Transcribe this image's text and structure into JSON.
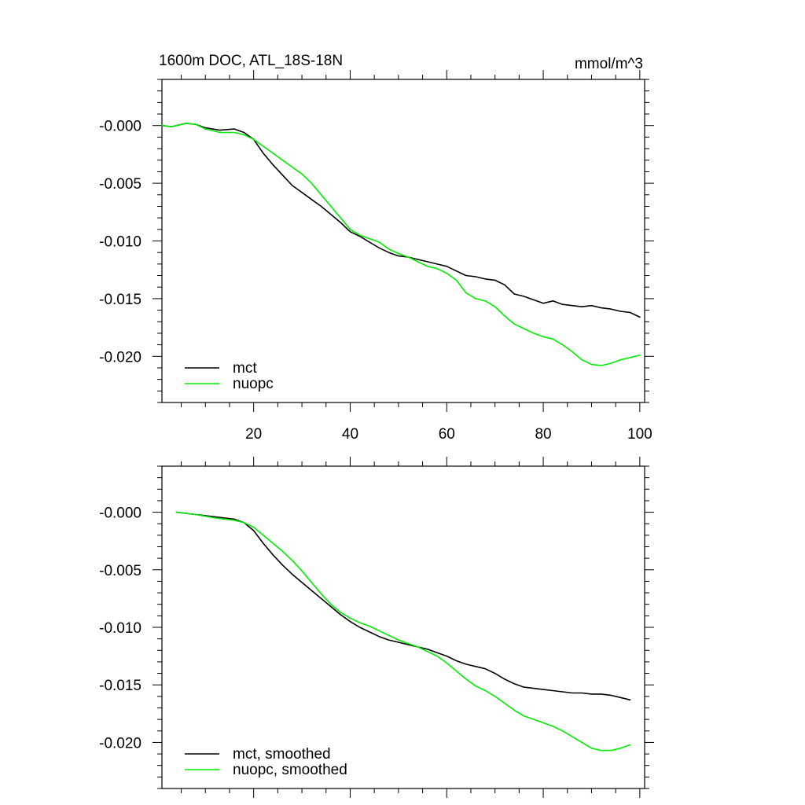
{
  "chart_data": [
    {
      "type": "line",
      "title": "1600m DOC, ATL_18S-18N",
      "units": "mmol/m^3",
      "xlim": [
        1,
        101
      ],
      "ylim": [
        -0.024,
        0.004
      ],
      "x_ticks": [
        20,
        40,
        60,
        80,
        100
      ],
      "x_tick_labels": [
        "20",
        "40",
        "60",
        "80",
        "100"
      ],
      "y_ticks": [
        0,
        -0.005,
        -0.01,
        -0.015,
        -0.02
      ],
      "y_tick_labels": [
        "-0.000",
        "-0.005",
        "-0.010",
        "-0.015",
        "-0.020"
      ],
      "legend_position": "bottom-left",
      "series": [
        {
          "name": "mct",
          "color": "#000000",
          "points": [
            [
              1,
              0
            ],
            [
              3,
              -0.0001
            ],
            [
              6,
              0.0002
            ],
            [
              8,
              0.0001
            ],
            [
              10,
              -0.0002
            ],
            [
              13,
              -0.0004
            ],
            [
              16,
              -0.0003
            ],
            [
              18,
              -0.0006
            ],
            [
              20,
              -0.0012
            ],
            [
              22,
              -0.0024
            ],
            [
              24,
              -0.0034
            ],
            [
              26,
              -0.0043
            ],
            [
              28,
              -0.0052
            ],
            [
              30,
              -0.0058
            ],
            [
              32,
              -0.0064
            ],
            [
              34,
              -0.007
            ],
            [
              36,
              -0.0077
            ],
            [
              38,
              -0.0084
            ],
            [
              40,
              -0.0092
            ],
            [
              42,
              -0.0096
            ],
            [
              44,
              -0.0101
            ],
            [
              46,
              -0.0106
            ],
            [
              48,
              -0.011
            ],
            [
              50,
              -0.0113
            ],
            [
              52,
              -0.0114
            ],
            [
              54,
              -0.0116
            ],
            [
              56,
              -0.0118
            ],
            [
              58,
              -0.012
            ],
            [
              60,
              -0.0122
            ],
            [
              62,
              -0.0126
            ],
            [
              64,
              -0.013
            ],
            [
              66,
              -0.0131
            ],
            [
              68,
              -0.0133
            ],
            [
              70,
              -0.0134
            ],
            [
              72,
              -0.0138
            ],
            [
              74,
              -0.0146
            ],
            [
              76,
              -0.0148
            ],
            [
              78,
              -0.0151
            ],
            [
              80,
              -0.0154
            ],
            [
              82,
              -0.0152
            ],
            [
              84,
              -0.0155
            ],
            [
              86,
              -0.0156
            ],
            [
              88,
              -0.0157
            ],
            [
              90,
              -0.0156
            ],
            [
              92,
              -0.0158
            ],
            [
              94,
              -0.0159
            ],
            [
              96,
              -0.0161
            ],
            [
              98,
              -0.0162
            ],
            [
              100,
              -0.0166
            ]
          ]
        },
        {
          "name": "nuopc",
          "color": "#00ee00",
          "points": [
            [
              1,
              0
            ],
            [
              3,
              -0.0001
            ],
            [
              6,
              0.0002
            ],
            [
              8,
              0.0001
            ],
            [
              10,
              -0.0003
            ],
            [
              13,
              -0.0006
            ],
            [
              16,
              -0.0006
            ],
            [
              18,
              -0.0008
            ],
            [
              20,
              -0.0012
            ],
            [
              22,
              -0.0018
            ],
            [
              24,
              -0.0024
            ],
            [
              26,
              -0.003
            ],
            [
              28,
              -0.0036
            ],
            [
              30,
              -0.0042
            ],
            [
              32,
              -0.005
            ],
            [
              34,
              -0.006
            ],
            [
              36,
              -0.007
            ],
            [
              38,
              -0.008
            ],
            [
              40,
              -0.009
            ],
            [
              42,
              -0.0095
            ],
            [
              44,
              -0.0098
            ],
            [
              46,
              -0.0101
            ],
            [
              48,
              -0.0107
            ],
            [
              50,
              -0.0111
            ],
            [
              52,
              -0.0114
            ],
            [
              54,
              -0.0118
            ],
            [
              56,
              -0.0122
            ],
            [
              58,
              -0.0124
            ],
            [
              60,
              -0.0128
            ],
            [
              62,
              -0.0134
            ],
            [
              64,
              -0.0145
            ],
            [
              66,
              -0.015
            ],
            [
              68,
              -0.0152
            ],
            [
              70,
              -0.0157
            ],
            [
              72,
              -0.0165
            ],
            [
              74,
              -0.0172
            ],
            [
              76,
              -0.0176
            ],
            [
              78,
              -0.018
            ],
            [
              80,
              -0.0183
            ],
            [
              82,
              -0.0185
            ],
            [
              84,
              -0.019
            ],
            [
              86,
              -0.0196
            ],
            [
              88,
              -0.0203
            ],
            [
              90,
              -0.0207
            ],
            [
              92,
              -0.0208
            ],
            [
              94,
              -0.0206
            ],
            [
              96,
              -0.0203
            ],
            [
              98,
              -0.0201
            ],
            [
              100,
              -0.0199
            ]
          ]
        }
      ]
    },
    {
      "type": "line",
      "title": "",
      "units": "",
      "xlim": [
        1,
        101
      ],
      "ylim": [
        -0.024,
        0.004
      ],
      "x_ticks": [
        20,
        40,
        60,
        80,
        100
      ],
      "x_tick_labels": [],
      "y_ticks": [
        0,
        -0.005,
        -0.01,
        -0.015,
        -0.02
      ],
      "y_tick_labels": [
        "-0.000",
        "-0.005",
        "-0.010",
        "-0.015",
        "-0.020"
      ],
      "legend_position": "bottom-left",
      "series": [
        {
          "name": "mct, smoothed",
          "color": "#000000",
          "points": [
            [
              4,
              0
            ],
            [
              8,
              -0.0002
            ],
            [
              12,
              -0.0004
            ],
            [
              16,
              -0.0006
            ],
            [
              18,
              -0.0009
            ],
            [
              20,
              -0.0016
            ],
            [
              22,
              -0.0027
            ],
            [
              24,
              -0.0037
            ],
            [
              26,
              -0.0046
            ],
            [
              28,
              -0.0054
            ],
            [
              30,
              -0.0061
            ],
            [
              32,
              -0.0068
            ],
            [
              34,
              -0.0075
            ],
            [
              36,
              -0.0082
            ],
            [
              38,
              -0.0089
            ],
            [
              40,
              -0.0095
            ],
            [
              42,
              -0.01
            ],
            [
              44,
              -0.0104
            ],
            [
              46,
              -0.0108
            ],
            [
              48,
              -0.0111
            ],
            [
              50,
              -0.0113
            ],
            [
              52,
              -0.0115
            ],
            [
              54,
              -0.0117
            ],
            [
              56,
              -0.0119
            ],
            [
              58,
              -0.0122
            ],
            [
              60,
              -0.0125
            ],
            [
              62,
              -0.0129
            ],
            [
              64,
              -0.0132
            ],
            [
              66,
              -0.0134
            ],
            [
              68,
              -0.0136
            ],
            [
              70,
              -0.014
            ],
            [
              72,
              -0.0145
            ],
            [
              74,
              -0.0149
            ],
            [
              76,
              -0.0152
            ],
            [
              78,
              -0.0153
            ],
            [
              80,
              -0.0154
            ],
            [
              82,
              -0.0155
            ],
            [
              84,
              -0.0156
            ],
            [
              86,
              -0.0157
            ],
            [
              88,
              -0.0157
            ],
            [
              90,
              -0.0158
            ],
            [
              92,
              -0.0158
            ],
            [
              94,
              -0.0159
            ],
            [
              96,
              -0.0161
            ],
            [
              98,
              -0.0163
            ]
          ]
        },
        {
          "name": "nuopc, smoothed",
          "color": "#00ee00",
          "points": [
            [
              4,
              0
            ],
            [
              8,
              -0.0002
            ],
            [
              12,
              -0.0005
            ],
            [
              16,
              -0.0007
            ],
            [
              18,
              -0.0009
            ],
            [
              20,
              -0.0013
            ],
            [
              22,
              -0.002
            ],
            [
              24,
              -0.0027
            ],
            [
              26,
              -0.0034
            ],
            [
              28,
              -0.0042
            ],
            [
              30,
              -0.0051
            ],
            [
              32,
              -0.0061
            ],
            [
              34,
              -0.0071
            ],
            [
              36,
              -0.008
            ],
            [
              38,
              -0.0087
            ],
            [
              40,
              -0.0092
            ],
            [
              42,
              -0.0096
            ],
            [
              44,
              -0.0099
            ],
            [
              46,
              -0.0103
            ],
            [
              48,
              -0.0107
            ],
            [
              50,
              -0.0111
            ],
            [
              52,
              -0.0114
            ],
            [
              54,
              -0.0117
            ],
            [
              56,
              -0.0121
            ],
            [
              58,
              -0.0125
            ],
            [
              60,
              -0.0131
            ],
            [
              62,
              -0.0138
            ],
            [
              64,
              -0.0145
            ],
            [
              66,
              -0.0151
            ],
            [
              68,
              -0.0155
            ],
            [
              70,
              -0.016
            ],
            [
              72,
              -0.0166
            ],
            [
              74,
              -0.0172
            ],
            [
              76,
              -0.0177
            ],
            [
              78,
              -0.018
            ],
            [
              80,
              -0.0183
            ],
            [
              82,
              -0.0186
            ],
            [
              84,
              -0.019
            ],
            [
              86,
              -0.0195
            ],
            [
              88,
              -0.02
            ],
            [
              90,
              -0.0205
            ],
            [
              92,
              -0.0207
            ],
            [
              94,
              -0.0207
            ],
            [
              96,
              -0.0205
            ],
            [
              98,
              -0.0202
            ]
          ]
        }
      ]
    }
  ]
}
